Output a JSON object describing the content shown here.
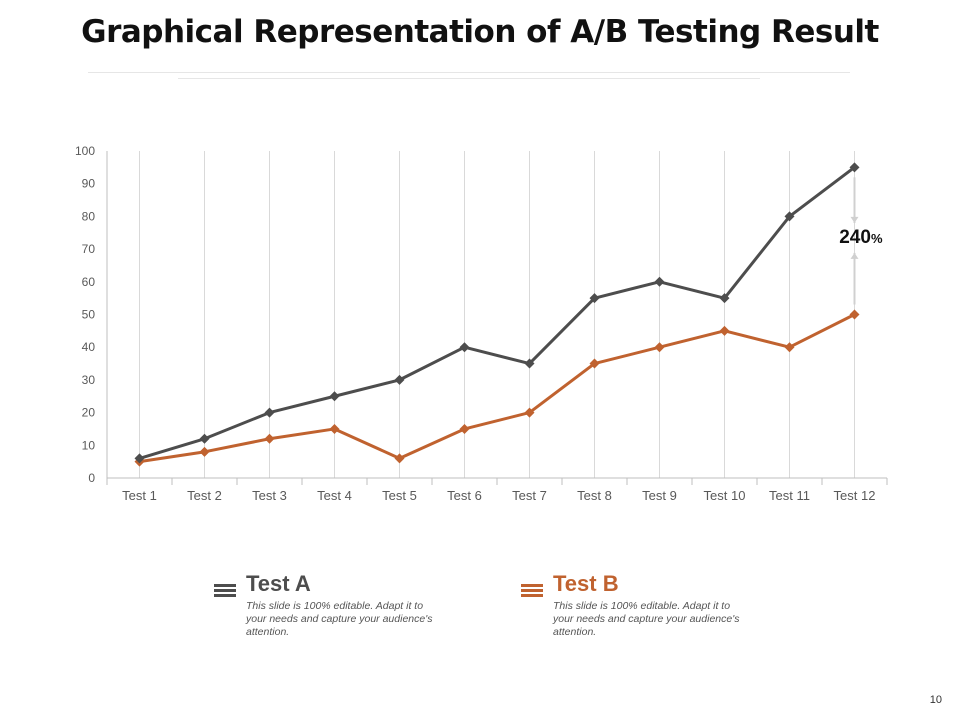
{
  "slide": {
    "title": "Graphical Representation of A/B Testing Result",
    "page_number": "10"
  },
  "colors": {
    "test_a": "#4d4d4d",
    "test_b": "#c0622f",
    "grid": "#d9d9d9",
    "axis": "#bfbfbf",
    "text": "#595959"
  },
  "chart_data": {
    "type": "line",
    "categories": [
      "Test 1",
      "Test 2",
      "Test 3",
      "Test 4",
      "Test 5",
      "Test 6",
      "Test 7",
      "Test 8",
      "Test 9",
      "Test 10",
      "Test 11",
      "Test 12"
    ],
    "series": [
      {
        "name": "Test A",
        "values": [
          6,
          12,
          20,
          25,
          30,
          40,
          35,
          55,
          60,
          55,
          80,
          95
        ]
      },
      {
        "name": "Test B",
        "values": [
          5,
          8,
          12,
          15,
          6,
          15,
          20,
          35,
          40,
          45,
          40,
          50
        ]
      }
    ],
    "ylim": [
      0,
      100
    ],
    "yticks": [
      0,
      10,
      20,
      30,
      40,
      50,
      60,
      70,
      80,
      90,
      100
    ],
    "grid": "vertical",
    "annotation": {
      "value": "240",
      "unit": "%"
    }
  },
  "legend": [
    {
      "title": "Test A",
      "description": "This slide is 100% editable. Adapt it to your needs and capture your audience's attention."
    },
    {
      "title": "Test B",
      "description": "This slide is 100% editable. Adapt it to your needs and capture your audience's attention."
    }
  ]
}
